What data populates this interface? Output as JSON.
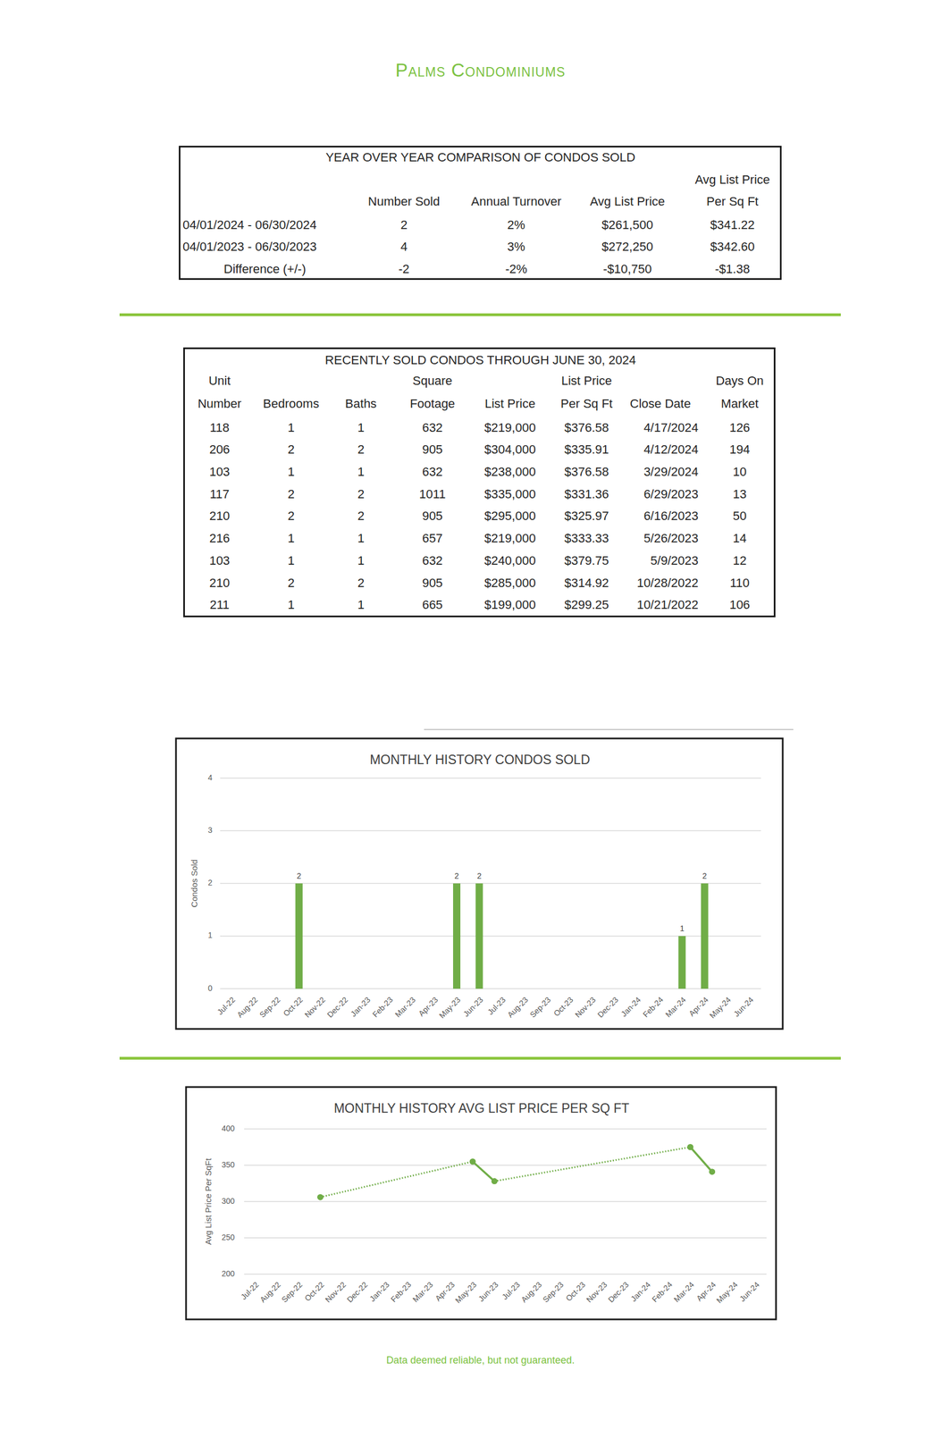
{
  "header": {
    "title": "Palms Condominiums"
  },
  "yoy_table": {
    "title": "YEAR OVER YEAR COMPARISON OF CONDOS SOLD",
    "columns": [
      [
        "Number Sold"
      ],
      [
        "Annual Turnover"
      ],
      [
        "Avg List Price"
      ],
      [
        "Avg List Price",
        "Per Sq Ft"
      ]
    ],
    "rows": [
      [
        "04/01/2024 - 06/30/2024",
        "2",
        "2%",
        "$261,500",
        "$341.22"
      ],
      [
        "04/01/2023 - 06/30/2023",
        "4",
        "3%",
        "$272,250",
        "$342.60"
      ],
      [
        "Difference (+/-)",
        "-2",
        "-2%",
        "-$10,750",
        "-$1.38"
      ]
    ]
  },
  "sold_table": {
    "title": "RECENTLY SOLD CONDOS THROUGH JUNE 30, 2024",
    "columns": [
      [
        "Unit",
        "Number"
      ],
      [
        "Bedrooms"
      ],
      [
        "Baths"
      ],
      [
        "Square",
        "Footage"
      ],
      [
        "List Price"
      ],
      [
        "List Price",
        "Per Sq Ft"
      ],
      [
        "Close Date"
      ],
      [
        "Days On",
        "Market"
      ]
    ],
    "rows": [
      [
        "118",
        "1",
        "1",
        "632",
        "$219,000",
        "$376.58",
        "4/17/2024",
        "126"
      ],
      [
        "206",
        "2",
        "2",
        "905",
        "$304,000",
        "$335.91",
        "4/12/2024",
        "194"
      ],
      [
        "103",
        "1",
        "1",
        "632",
        "$238,000",
        "$376.58",
        "3/29/2024",
        "10"
      ],
      [
        "117",
        "2",
        "2",
        "1011",
        "$335,000",
        "$331.36",
        "6/29/2023",
        "13"
      ],
      [
        "210",
        "2",
        "2",
        "905",
        "$295,000",
        "$325.97",
        "6/16/2023",
        "50"
      ],
      [
        "216",
        "1",
        "1",
        "657",
        "$219,000",
        "$333.33",
        "5/26/2023",
        "14"
      ],
      [
        "103",
        "1",
        "1",
        "632",
        "$240,000",
        "$379.75",
        "5/9/2023",
        "12"
      ],
      [
        "210",
        "2",
        "2",
        "905",
        "$285,000",
        "$314.92",
        "10/28/2022",
        "110"
      ],
      [
        "211",
        "1",
        "1",
        "665",
        "$199,000",
        "$299.25",
        "10/21/2022",
        "106"
      ]
    ]
  },
  "chart_data": [
    {
      "type": "bar",
      "title": "MONTHLY HISTORY CONDOS SOLD",
      "y_label": "Condos Sold",
      "categories": [
        "Jul-22",
        "Aug-22",
        "Sep-22",
        "Oct-22",
        "Nov-22",
        "Dec-22",
        "Jan-23",
        "Feb-23",
        "Mar-23",
        "Apr-23",
        "May-23",
        "Jun-23",
        "Jul-23",
        "Aug-23",
        "Sep-23",
        "Oct-23",
        "Nov-23",
        "Dec-23",
        "Jan-24",
        "Feb-24",
        "Mar-24",
        "Apr-24",
        "May-24",
        "Jun-24"
      ],
      "values": [
        null,
        null,
        null,
        2,
        null,
        null,
        null,
        null,
        null,
        null,
        2,
        2,
        null,
        null,
        null,
        null,
        null,
        null,
        null,
        null,
        1,
        2,
        null,
        null
      ],
      "color": "#70ad47",
      "ylim": [
        0,
        4
      ],
      "yticks": [
        0,
        1,
        2,
        3,
        4
      ],
      "grid": true,
      "data_labels": true
    },
    {
      "type": "line",
      "title": "MONTHLY HISTORY AVG LIST PRICE PER SQ FT",
      "y_label": "Avg List Price Per SqFt",
      "categories": [
        "Jul-22",
        "Aug-22",
        "Sep-22",
        "Oct-22",
        "Nov-22",
        "Dec-22",
        "Jan-23",
        "Feb-23",
        "Mar-23",
        "Apr-23",
        "May-23",
        "Jun-23",
        "Jul-23",
        "Aug-23",
        "Sep-23",
        "Oct-23",
        "Nov-23",
        "Dec-23",
        "Jan-24",
        "Feb-24",
        "Mar-24",
        "Apr-24",
        "May-24",
        "Jun-24"
      ],
      "values": [
        null,
        null,
        null,
        306,
        null,
        null,
        null,
        null,
        null,
        null,
        355,
        328,
        null,
        null,
        null,
        null,
        null,
        null,
        null,
        null,
        375,
        341,
        null,
        null
      ],
      "color": "#70ad47",
      "marker": "circle",
      "line_style": "solid",
      "ylim": [
        200,
        400
      ],
      "yticks": [
        200,
        250,
        300,
        350,
        400
      ],
      "grid": true,
      "data_labels": false
    }
  ],
  "footer": {
    "note": "Data deemed reliable, but not guaranteed."
  }
}
